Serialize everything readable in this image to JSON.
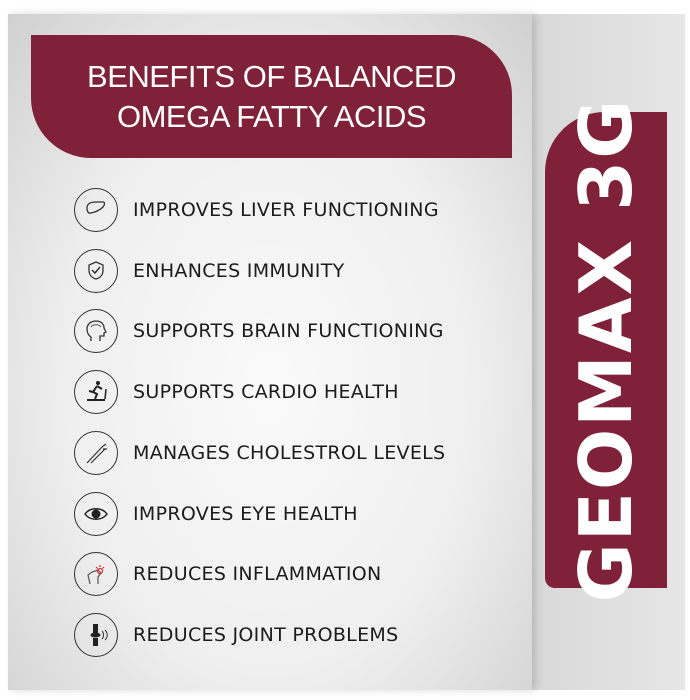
{
  "header": {
    "line1": "BENEFITS OF BALANCED",
    "line2": "OMEGA FATTY ACIDS"
  },
  "brand": {
    "name": "GEOMAX 3G",
    "color": "#7f2239"
  },
  "benefits": [
    {
      "label": "IMPROVES LIVER FUNCTIONING",
      "icon": "liver-icon"
    },
    {
      "label": "ENHANCES IMMUNITY",
      "icon": "shield-check-icon"
    },
    {
      "label": "SUPPORTS BRAIN FUNCTIONING",
      "icon": "brain-head-icon"
    },
    {
      "label": "SUPPORTS CARDIO HEALTH",
      "icon": "treadmill-runner-icon"
    },
    {
      "label": "MANAGES CHOLESTROL LEVELS",
      "icon": "artery-icon"
    },
    {
      "label": "IMPROVES EYE HEALTH",
      "icon": "eye-icon"
    },
    {
      "label": "REDUCES INFLAMMATION",
      "icon": "inflamed-foot-icon"
    },
    {
      "label": "REDUCES JOINT PROBLEMS",
      "icon": "knee-joint-icon"
    }
  ]
}
